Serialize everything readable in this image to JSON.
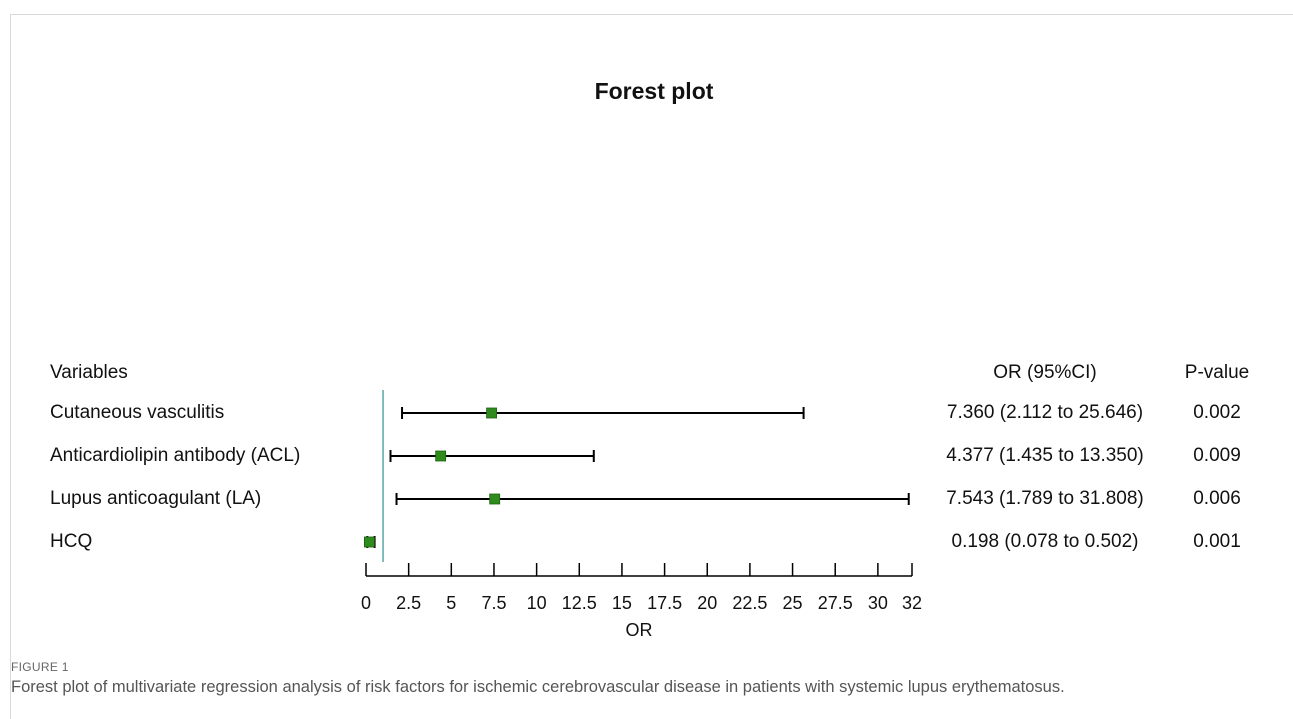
{
  "chart_data": {
    "type": "forest",
    "title": "Forest plot",
    "xlabel": "OR",
    "xlim": [
      0,
      32
    ],
    "xticks": [
      0,
      2.5,
      5,
      7.5,
      10,
      12.5,
      15,
      17.5,
      20,
      22.5,
      25,
      27.5,
      30,
      32
    ],
    "reference_line": 1,
    "headers": {
      "variables": "Variables",
      "or_ci": "OR (95%CI)",
      "p_value": "P-value"
    },
    "rows": [
      {
        "variable": "Cutaneous vasculitis",
        "or": 7.36,
        "lower": 2.112,
        "upper": 25.646,
        "or_ci_text": "7.360 (2.112 to 25.646)",
        "p_value": "0.002"
      },
      {
        "variable": "Anticardiolipin antibody (ACL)",
        "or": 4.377,
        "lower": 1.435,
        "upper": 13.35,
        "or_ci_text": "4.377 (1.435 to 13.350)",
        "p_value": "0.009"
      },
      {
        "variable": "Lupus anticoagulant (LA)",
        "or": 7.543,
        "lower": 1.789,
        "upper": 31.808,
        "or_ci_text": "7.543 (1.789 to 31.808)",
        "p_value": "0.006"
      },
      {
        "variable": "HCQ",
        "or": 0.198,
        "lower": 0.078,
        "upper": 0.502,
        "or_ci_text": "0.198 (0.078 to 0.502)",
        "p_value": "0.001"
      }
    ],
    "colors": {
      "marker": "#2e8b1c",
      "reference": "#5aa7a7",
      "line": "#000000"
    }
  },
  "caption": {
    "label": "FIGURE 1",
    "text": "Forest plot of multivariate regression analysis of risk factors for ischemic cerebrovascular disease in patients with systemic lupus erythematosus."
  }
}
